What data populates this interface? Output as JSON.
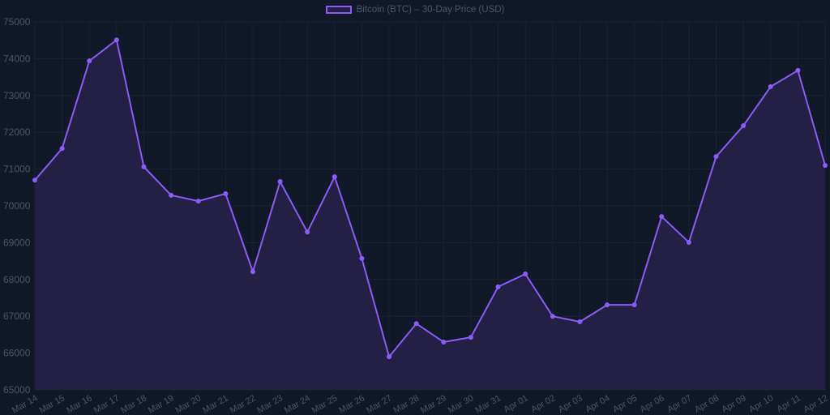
{
  "chart_data": {
    "type": "line",
    "title": "",
    "legend": [
      "Bitcoin (BTC) – 30-Day Price (USD)"
    ],
    "legend_position": "top",
    "xlabel": "",
    "ylabel": "",
    "ylim": [
      65000,
      75000
    ],
    "yticks": [
      65000,
      66000,
      67000,
      68000,
      69000,
      70000,
      71000,
      72000,
      73000,
      74000,
      75000
    ],
    "grid": true,
    "filled_area": true,
    "categories": [
      "Mar 14",
      "Mar 15",
      "Mar 16",
      "Mar 17",
      "Mar 18",
      "Mar 19",
      "Mar 20",
      "Mar 21",
      "Mar 22",
      "Mar 23",
      "Mar 24",
      "Mar 25",
      "Mar 26",
      "Mar 27",
      "Mar 28",
      "Mar 29",
      "Mar 30",
      "Mar 31",
      "Apr 01",
      "Apr 02",
      "Apr 03",
      "Apr 04",
      "Apr 05",
      "Apr 06",
      "Apr 07",
      "Apr 08",
      "Apr 09",
      "Apr 10",
      "Apr 11",
      "Apr 12"
    ],
    "series": [
      {
        "name": "Bitcoin (BTC) – 30-Day Price (USD)",
        "color": "#8b5cf6",
        "fill": "#241f45",
        "values": [
          70700,
          71560,
          73940,
          74510,
          71060,
          70290,
          70130,
          70330,
          68210,
          70660,
          69290,
          70790,
          68570,
          65900,
          66800,
          66300,
          66430,
          67800,
          68150,
          67000,
          66850,
          67310,
          67310,
          69710,
          69010,
          71340,
          72180,
          73240,
          73680,
          71100
        ]
      }
    ]
  },
  "legend": {
    "label": "Bitcoin (BTC) – 30-Day Price (USD)"
  },
  "colors": {
    "background": "#111827",
    "line": "#8b5cf6",
    "fill": "#241f45",
    "grid": "#1c2433",
    "tick_text": "#4b5563"
  }
}
